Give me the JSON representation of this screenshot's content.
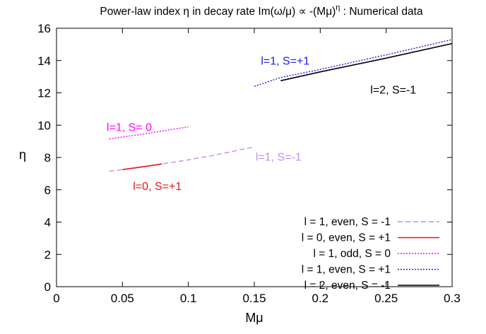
{
  "chart_data": {
    "type": "line",
    "title": "Power-law index η in decay rate Im(ω/μ) ∝ -(Mμ)",
    "title_superscript": "η",
    "title_suffix": " : Numerical data",
    "xlabel": "Mμ",
    "ylabel": "η",
    "xlim": [
      0,
      0.3
    ],
    "ylim": [
      0,
      16
    ],
    "x_ticks": [
      0,
      0.05,
      0.1,
      0.15,
      0.2,
      0.25,
      0.3
    ],
    "x_tick_labels": [
      "0",
      "0.05",
      "0.1",
      "0.15",
      "0.2",
      "0.25",
      "0.3"
    ],
    "y_ticks": [
      0,
      2,
      4,
      6,
      8,
      10,
      12,
      14,
      16
    ],
    "y_tick_labels": [
      "0",
      "2",
      "4",
      "6",
      "8",
      "10",
      "12",
      "14",
      "16"
    ],
    "grid": false,
    "legend_position": "bottom-right",
    "series": [
      {
        "name": "l = 1, even, S = -1",
        "color": "#c58cf0",
        "dash": "dashed",
        "x": [
          0.04,
          0.06,
          0.08,
          0.1,
          0.12,
          0.15
        ],
        "y": [
          7.15,
          7.35,
          7.6,
          7.85,
          8.15,
          8.65
        ],
        "annotation": {
          "text": "l=1, S=-1",
          "x": 0.151,
          "y": 7.8
        }
      },
      {
        "name": "l = 0, even, S = +1",
        "color": "#e8141e",
        "dash": "solid",
        "x": [
          0.05,
          0.065,
          0.08
        ],
        "y": [
          7.25,
          7.42,
          7.6
        ],
        "annotation": {
          "text": "l=0, S=+1",
          "x": 0.058,
          "y": 6.0
        }
      },
      {
        "name": "l = 1,  odd, S = 0",
        "color": "#ff00ff",
        "dash": "dotted",
        "x": [
          0.04,
          0.07,
          0.1
        ],
        "y": [
          9.15,
          9.5,
          9.9
        ],
        "annotation": {
          "text": "l=1, S= 0",
          "x": 0.038,
          "y": 9.65
        }
      },
      {
        "name": "l = 1, even, S = +1",
        "color": "#1a1aee",
        "dash": "dotted",
        "x": [
          0.15,
          0.17,
          0.2,
          0.25,
          0.3
        ],
        "y": [
          12.4,
          12.95,
          13.45,
          14.35,
          15.3
        ],
        "annotation": {
          "text": "l=1, S=+1",
          "x": 0.155,
          "y": 13.75
        }
      },
      {
        "name": "l = 2, even, S = -1",
        "color": "#000000",
        "dash": "solid",
        "x": [
          0.17,
          0.2,
          0.25,
          0.3
        ],
        "y": [
          12.75,
          13.3,
          14.15,
          15.05
        ],
        "annotation": {
          "text": "l=2, S=-1",
          "x": 0.238,
          "y": 11.95
        }
      }
    ]
  }
}
